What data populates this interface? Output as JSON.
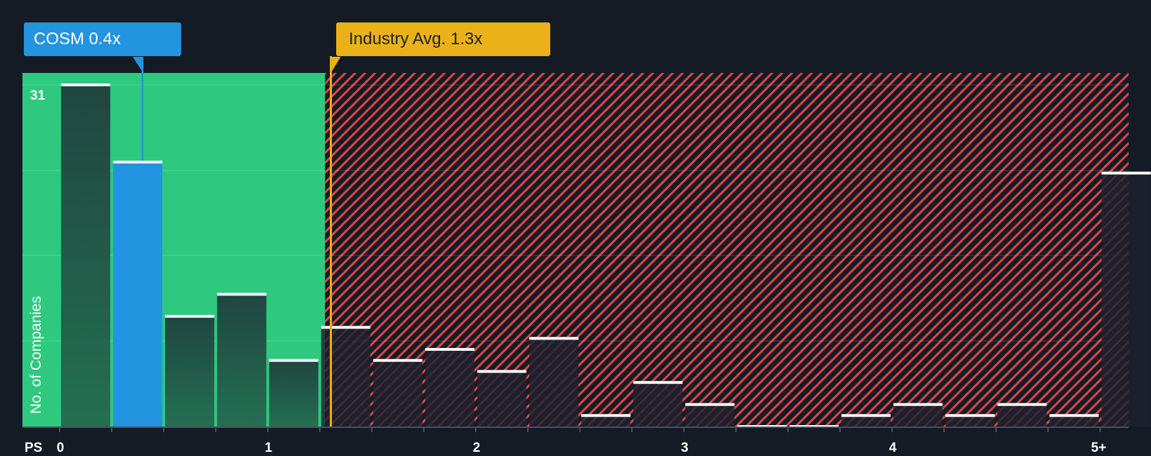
{
  "chart_data": {
    "type": "bar",
    "title": "",
    "xlabel": "PS",
    "ylabel": "No. of Companies",
    "ylim": [
      0,
      31
    ],
    "y_max_label": "31",
    "bin_width": 0.25,
    "x_tick_labels": [
      "0",
      "1",
      "2",
      "3",
      "4",
      "5+"
    ],
    "categories": [
      "0-0.25",
      "0.25-0.5",
      "0.5-0.75",
      "0.75-1",
      "1-1.25",
      "1.25-1.5",
      "1.5-1.75",
      "1.75-2",
      "2-2.25",
      "2.25-2.5",
      "2.5-2.75",
      "2.75-3",
      "3-3.25",
      "3.25-3.5",
      "3.5-3.75",
      "3.75-4",
      "4-4.25",
      "4.25-4.5",
      "4.5-4.75",
      "4.75-5",
      "5+"
    ],
    "values": [
      31,
      24,
      10,
      12,
      6,
      9,
      6,
      7,
      5,
      8,
      1,
      4,
      2,
      0,
      0,
      1,
      2,
      1,
      2,
      1,
      23
    ],
    "highlight": {
      "label": "COSM 0.4x",
      "ticker": "COSM",
      "value": 0.4,
      "bin_index": 1
    },
    "industry_avg": {
      "label": "Industry Avg. 1.3x",
      "value": 1.3
    },
    "grid": true,
    "legend": "none"
  },
  "labels": {
    "cosm": "COSM 0.4x",
    "industry": "Industry Avg. 1.3x",
    "ps": "PS",
    "ytitle": "No. of Companies",
    "ymax": "31",
    "ticks": [
      "0",
      "1",
      "2",
      "3",
      "4",
      "5+"
    ]
  },
  "colors": {
    "background": "#151b24",
    "fair_zone": "#2ec97e",
    "overvalued_hatch": "#e0454a",
    "highlight_bar": "#2394df",
    "industry_line": "#ebb119",
    "bar_cap": "#ffffff"
  }
}
